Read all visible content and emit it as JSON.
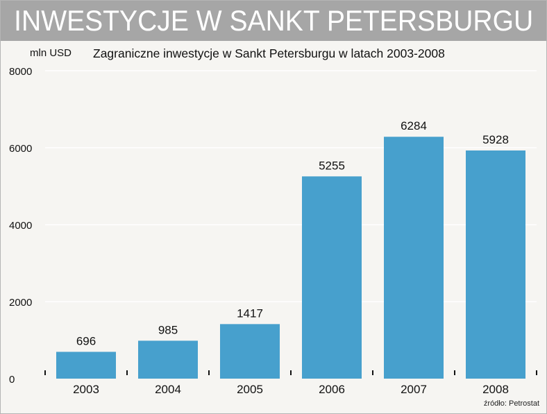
{
  "header": {
    "banner_title": "INWESTYCJE W SANKT PETERSBURGU",
    "source_note": "źródło: Petrostat"
  },
  "colors": {
    "banner_bg": "#a6a6a6",
    "bar": "#47a0cd",
    "background": "#f6f5f2",
    "gridline": "#ffffff"
  },
  "chart_data": {
    "type": "bar",
    "title": "Zagraniczne inwestycje w Sankt Petersburgu w latach 2003-2008",
    "ylabel": "mln USD",
    "xlabel": "",
    "categories": [
      "2003",
      "2004",
      "2005",
      "2006",
      "2007",
      "2008"
    ],
    "values": [
      696,
      985,
      1417,
      5255,
      6284,
      5928
    ],
    "data_labels": [
      "696",
      "985",
      "1417",
      "5255",
      "6284",
      "5928"
    ],
    "ylim": [
      0,
      8000
    ],
    "yticks": [
      "0",
      "2000",
      "4000",
      "6000",
      "8000"
    ],
    "grid": true,
    "legend": "none"
  }
}
